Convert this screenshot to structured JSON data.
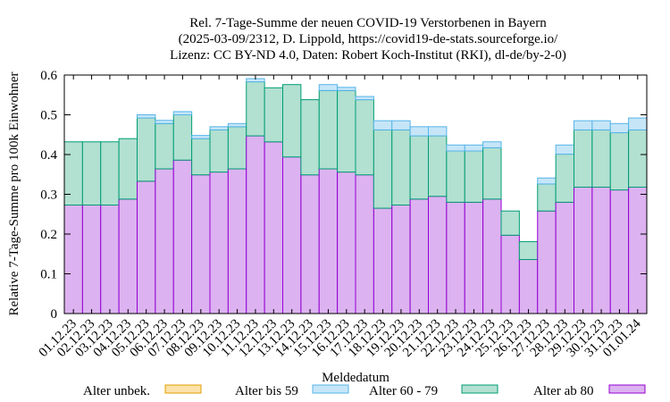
{
  "chart_data": {
    "type": "bar",
    "stacked": true,
    "title": [
      "Rel. 7-Tage-Summe der neuen COVID-19 Verstorbenen in Bayern",
      "(2025-03-09/2312, D. Lippold, https://covid19-de-stats.sourceforge.io/",
      "Lizenz: CC BY-ND 4.0, Daten: Robert Koch-Institut (RKI), dl-de/by-2-0)"
    ],
    "xlabel": "Meldedatum",
    "ylabel": "Relative 7-Tage-Summe pro 100k Einwohner",
    "ylim": [
      0,
      0.6
    ],
    "yticks": [
      "0",
      "0.1",
      "0.2",
      "0.3",
      "0.4",
      "0.5",
      "0.6"
    ],
    "categories": [
      "01.12.23",
      "02.12.23",
      "03.12.23",
      "04.12.23",
      "05.12.23",
      "06.12.23",
      "07.12.23",
      "08.12.23",
      "09.12.23",
      "10.12.23",
      "11.12.23",
      "12.12.23",
      "13.12.23",
      "14.12.23",
      "15.12.23",
      "16.12.23",
      "17.12.23",
      "18.12.23",
      "19.12.23",
      "20.12.23",
      "21.12.23",
      "22.12.23",
      "23.12.23",
      "24.12.23",
      "25.12.23",
      "26.12.23",
      "27.12.23",
      "28.12.23",
      "29.12.23",
      "30.12.23",
      "31.12.23",
      "01.01.24"
    ],
    "series": [
      {
        "name": "Alter ab 80",
        "fill": "#dcb2f0",
        "stroke": "#9400d3",
        "values": [
          0.273,
          0.273,
          0.273,
          0.288,
          0.333,
          0.364,
          0.386,
          0.349,
          0.356,
          0.364,
          0.447,
          0.432,
          0.394,
          0.349,
          0.364,
          0.356,
          0.349,
          0.265,
          0.273,
          0.288,
          0.295,
          0.28,
          0.28,
          0.288,
          0.197,
          0.136,
          0.258,
          0.28,
          0.318,
          0.318,
          0.311,
          0.318
        ]
      },
      {
        "name": "Alter 60 - 79",
        "fill": "#b2e0d1",
        "stroke": "#009e73",
        "values": [
          0.159,
          0.159,
          0.159,
          0.152,
          0.159,
          0.114,
          0.114,
          0.091,
          0.106,
          0.106,
          0.136,
          0.136,
          0.182,
          0.189,
          0.197,
          0.205,
          0.189,
          0.197,
          0.189,
          0.159,
          0.152,
          0.129,
          0.129,
          0.129,
          0.061,
          0.045,
          0.068,
          0.121,
          0.144,
          0.144,
          0.144,
          0.144
        ]
      },
      {
        "name": "Alter bis 59",
        "fill": "#c6e6f8",
        "stroke": "#56b4e9",
        "values": [
          0,
          0,
          0,
          0,
          0.008,
          0.008,
          0.008,
          0.008,
          0.008,
          0.008,
          0.008,
          0,
          0,
          0,
          0.015,
          0.008,
          0.008,
          0.023,
          0.023,
          0.023,
          0.023,
          0.015,
          0.015,
          0.015,
          0,
          0,
          0.015,
          0.023,
          0.023,
          0.023,
          0.023,
          0.03
        ]
      },
      {
        "name": "Alter unbek.",
        "fill": "#fbe2a8",
        "stroke": "#e69f00",
        "values": [
          0,
          0,
          0,
          0,
          0,
          0,
          0,
          0,
          0,
          0,
          0,
          0,
          0,
          0,
          0,
          0,
          0,
          0,
          0,
          0,
          0,
          0,
          0,
          0,
          0,
          0,
          0,
          0,
          0,
          0,
          0,
          0
        ]
      }
    ],
    "legend_order": [
      "Alter unbek.",
      "Alter bis 59",
      "Alter 60 - 79",
      "Alter ab 80"
    ],
    "legend_position": "bottom",
    "grid": false
  }
}
